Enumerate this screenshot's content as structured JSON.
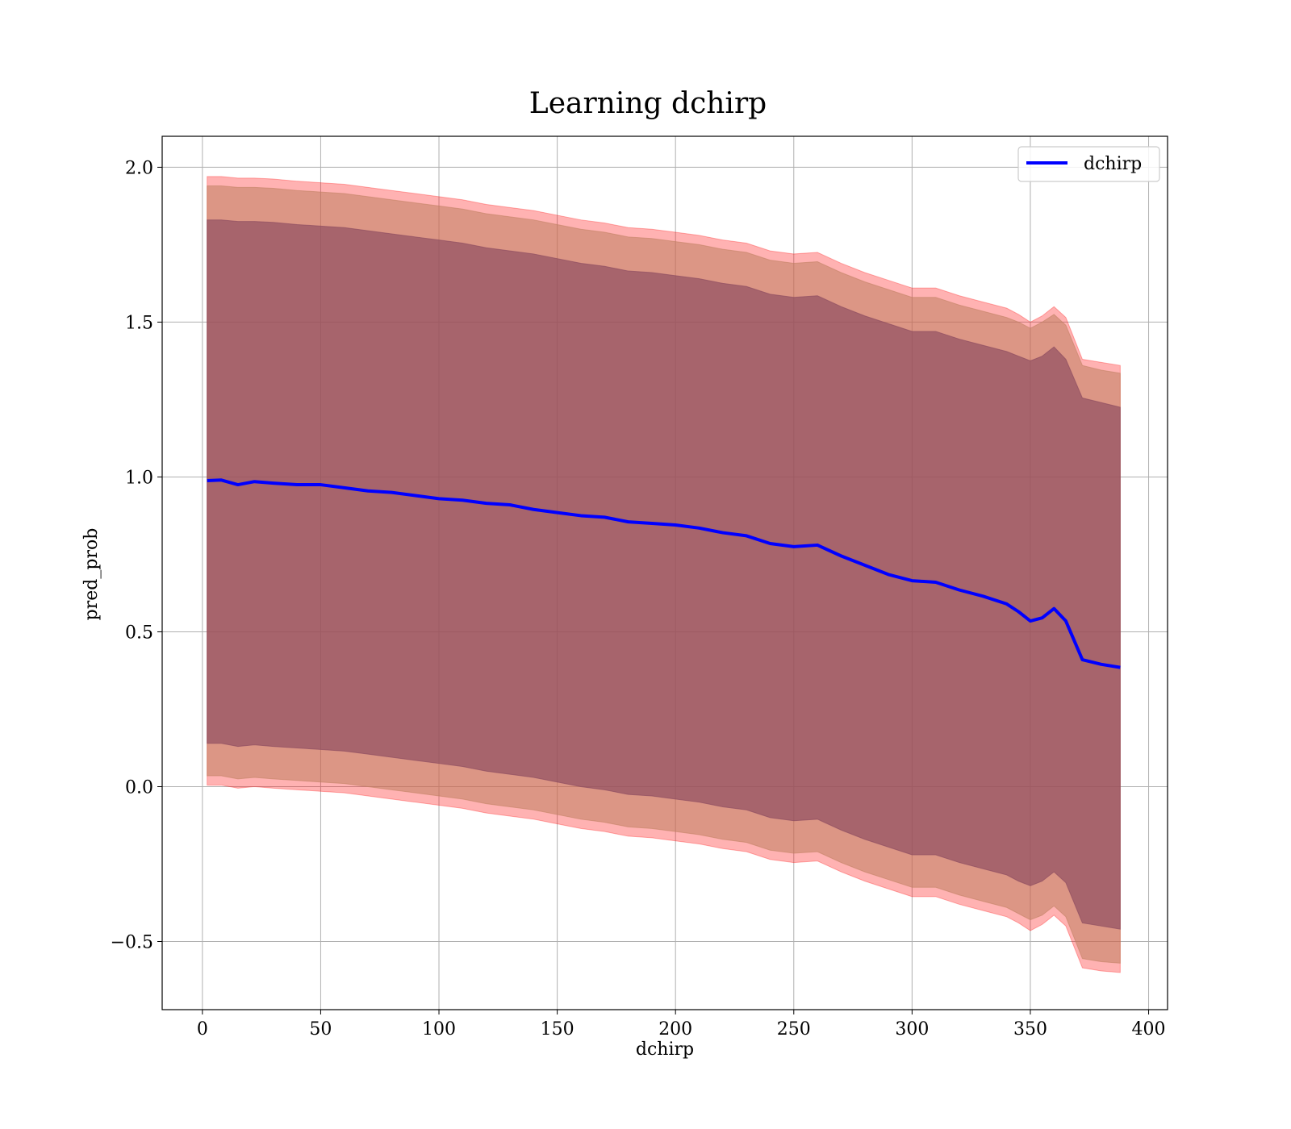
{
  "chart_data": {
    "type": "line",
    "title": "Learning dchirp",
    "xlabel": "dchirp",
    "ylabel": "pred_prob",
    "xlim": [
      -17,
      408
    ],
    "ylim": [
      -0.72,
      2.1
    ],
    "xticks": [
      0,
      50,
      100,
      150,
      200,
      250,
      300,
      350,
      400
    ],
    "xtick_labels": [
      "0",
      "50",
      "100",
      "150",
      "200",
      "250",
      "300",
      "350",
      "400"
    ],
    "yticks": [
      -0.5,
      0.0,
      0.5,
      1.0,
      1.5,
      2.0
    ],
    "ytick_labels": [
      "−0.5",
      "0.0",
      "0.5",
      "1.0",
      "1.5",
      "2.0"
    ],
    "grid": true,
    "legend": {
      "position": "top-right",
      "entries": [
        "dchirp"
      ]
    },
    "colors": {
      "line": "#0000ff",
      "band_outer": "#ff0000",
      "band_mid": "#c08060",
      "band_inner": "#8a4a60",
      "grid": "#b0b0b0"
    },
    "x": [
      2,
      8,
      15,
      22,
      30,
      40,
      50,
      60,
      70,
      80,
      90,
      100,
      110,
      120,
      130,
      140,
      150,
      160,
      170,
      180,
      190,
      200,
      210,
      220,
      230,
      240,
      250,
      260,
      270,
      280,
      290,
      300,
      310,
      320,
      330,
      340,
      345,
      350,
      355,
      360,
      365,
      372,
      380,
      388
    ],
    "series": [
      {
        "name": "dchirp",
        "role": "mean",
        "values": [
          0.988,
          0.99,
          0.975,
          0.985,
          0.98,
          0.975,
          0.975,
          0.965,
          0.955,
          0.95,
          0.94,
          0.93,
          0.925,
          0.915,
          0.91,
          0.895,
          0.885,
          0.875,
          0.87,
          0.855,
          0.85,
          0.845,
          0.835,
          0.82,
          0.81,
          0.785,
          0.775,
          0.78,
          0.745,
          0.715,
          0.685,
          0.665,
          0.66,
          0.635,
          0.615,
          0.59,
          0.565,
          0.535,
          0.545,
          0.575,
          0.535,
          0.41,
          0.395,
          0.385
        ]
      },
      {
        "name": "outer-upper",
        "role": "band",
        "values": [
          1.97,
          1.97,
          1.965,
          1.965,
          1.962,
          1.955,
          1.95,
          1.945,
          1.935,
          1.925,
          1.915,
          1.905,
          1.895,
          1.88,
          1.87,
          1.86,
          1.845,
          1.83,
          1.82,
          1.805,
          1.8,
          1.79,
          1.78,
          1.765,
          1.755,
          1.73,
          1.72,
          1.725,
          1.69,
          1.66,
          1.635,
          1.61,
          1.61,
          1.585,
          1.565,
          1.545,
          1.525,
          1.5,
          1.52,
          1.55,
          1.515,
          1.38,
          1.37,
          1.36
        ]
      },
      {
        "name": "outer-lower",
        "role": "band",
        "values": [
          0.005,
          0.005,
          -0.005,
          0.0,
          -0.005,
          -0.01,
          -0.015,
          -0.02,
          -0.03,
          -0.04,
          -0.05,
          -0.06,
          -0.07,
          -0.085,
          -0.095,
          -0.105,
          -0.12,
          -0.135,
          -0.145,
          -0.16,
          -0.165,
          -0.175,
          -0.185,
          -0.2,
          -0.21,
          -0.235,
          -0.245,
          -0.24,
          -0.275,
          -0.305,
          -0.33,
          -0.355,
          -0.355,
          -0.38,
          -0.4,
          -0.42,
          -0.44,
          -0.465,
          -0.445,
          -0.415,
          -0.45,
          -0.585,
          -0.595,
          -0.6
        ]
      },
      {
        "name": "mid-upper",
        "role": "band",
        "values": [
          1.94,
          1.94,
          1.935,
          1.935,
          1.932,
          1.925,
          1.92,
          1.915,
          1.905,
          1.895,
          1.885,
          1.875,
          1.865,
          1.85,
          1.84,
          1.83,
          1.815,
          1.8,
          1.79,
          1.775,
          1.77,
          1.76,
          1.75,
          1.735,
          1.725,
          1.7,
          1.69,
          1.695,
          1.66,
          1.63,
          1.605,
          1.58,
          1.58,
          1.555,
          1.535,
          1.515,
          1.5,
          1.48,
          1.5,
          1.525,
          1.49,
          1.36,
          1.345,
          1.335
        ]
      },
      {
        "name": "mid-lower",
        "role": "band",
        "values": [
          0.035,
          0.035,
          0.025,
          0.03,
          0.025,
          0.02,
          0.015,
          0.01,
          0.0,
          -0.01,
          -0.02,
          -0.03,
          -0.04,
          -0.055,
          -0.065,
          -0.075,
          -0.09,
          -0.105,
          -0.115,
          -0.13,
          -0.135,
          -0.145,
          -0.155,
          -0.17,
          -0.18,
          -0.205,
          -0.215,
          -0.21,
          -0.245,
          -0.275,
          -0.3,
          -0.325,
          -0.325,
          -0.35,
          -0.37,
          -0.39,
          -0.41,
          -0.43,
          -0.415,
          -0.385,
          -0.42,
          -0.555,
          -0.565,
          -0.57
        ]
      },
      {
        "name": "inner-upper",
        "role": "band",
        "values": [
          1.83,
          1.83,
          1.825,
          1.825,
          1.822,
          1.815,
          1.81,
          1.805,
          1.795,
          1.785,
          1.775,
          1.765,
          1.755,
          1.74,
          1.73,
          1.72,
          1.705,
          1.69,
          1.68,
          1.665,
          1.66,
          1.65,
          1.64,
          1.625,
          1.615,
          1.59,
          1.58,
          1.585,
          1.55,
          1.52,
          1.495,
          1.47,
          1.47,
          1.445,
          1.425,
          1.405,
          1.39,
          1.375,
          1.39,
          1.42,
          1.38,
          1.255,
          1.24,
          1.225
        ]
      },
      {
        "name": "inner-lower",
        "role": "band",
        "values": [
          0.14,
          0.14,
          0.13,
          0.135,
          0.13,
          0.125,
          0.12,
          0.115,
          0.105,
          0.095,
          0.085,
          0.075,
          0.065,
          0.05,
          0.04,
          0.03,
          0.015,
          0.0,
          -0.01,
          -0.025,
          -0.03,
          -0.04,
          -0.05,
          -0.065,
          -0.075,
          -0.1,
          -0.11,
          -0.105,
          -0.14,
          -0.17,
          -0.195,
          -0.22,
          -0.22,
          -0.245,
          -0.265,
          -0.285,
          -0.305,
          -0.32,
          -0.305,
          -0.275,
          -0.31,
          -0.44,
          -0.45,
          -0.46
        ]
      }
    ]
  }
}
